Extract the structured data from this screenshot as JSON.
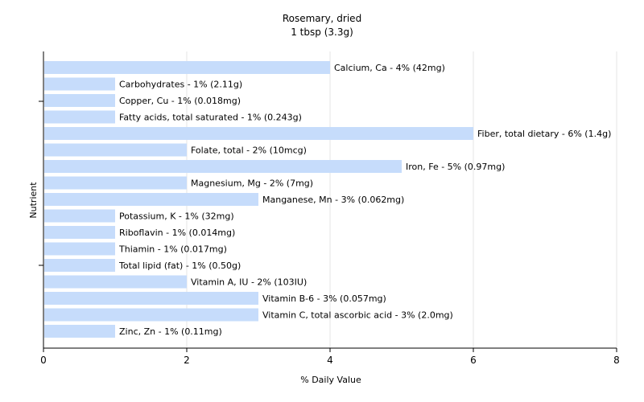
{
  "chart_data": {
    "type": "bar",
    "orientation": "horizontal",
    "title": "Rosemary, dried",
    "subtitle": "1 tbsp (3.3g)",
    "xlabel": "% Daily Value",
    "ylabel": "Nutrient",
    "xlim": [
      0,
      8
    ],
    "xticks": [
      0,
      2,
      4,
      6,
      8
    ],
    "grid": "vertical",
    "bar_color": "#c6dcfb",
    "bars": [
      {
        "label": "Calcium, Ca - 4% (42mg)",
        "value": 4
      },
      {
        "label": "Carbohydrates - 1% (2.11g)",
        "value": 1
      },
      {
        "label": "Copper, Cu - 1% (0.018mg)",
        "value": 1
      },
      {
        "label": "Fatty acids, total saturated - 1% (0.243g)",
        "value": 1
      },
      {
        "label": "Fiber, total dietary - 6% (1.4g)",
        "value": 6
      },
      {
        "label": "Folate, total - 2% (10mcg)",
        "value": 2
      },
      {
        "label": "Iron, Fe - 5% (0.97mg)",
        "value": 5
      },
      {
        "label": "Magnesium, Mg - 2% (7mg)",
        "value": 2
      },
      {
        "label": "Manganese, Mn - 3% (0.062mg)",
        "value": 3
      },
      {
        "label": "Potassium, K - 1% (32mg)",
        "value": 1
      },
      {
        "label": "Riboflavin - 1% (0.014mg)",
        "value": 1
      },
      {
        "label": "Thiamin - 1% (0.017mg)",
        "value": 1
      },
      {
        "label": "Total lipid (fat) - 1% (0.50g)",
        "value": 1
      },
      {
        "label": "Vitamin A, IU - 2% (103IU)",
        "value": 2
      },
      {
        "label": "Vitamin B-6 - 3% (0.057mg)",
        "value": 3
      },
      {
        "label": "Vitamin C, total ascorbic acid - 3% (2.0mg)",
        "value": 3
      },
      {
        "label": "Zinc, Zn - 1% (0.11mg)",
        "value": 1
      }
    ]
  }
}
